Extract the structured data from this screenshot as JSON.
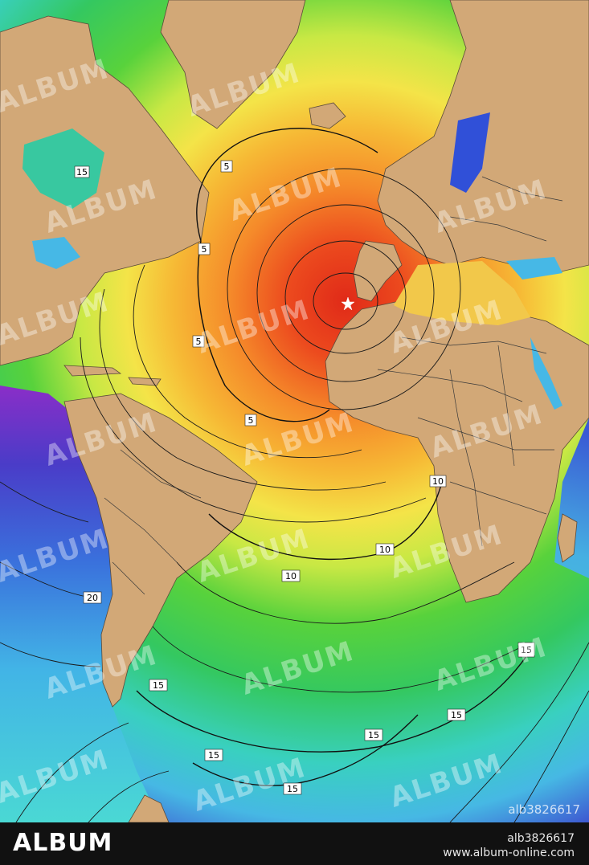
{
  "map": {
    "contour_labels": [
      {
        "text": "5"
      },
      {
        "text": "5"
      },
      {
        "text": "5"
      },
      {
        "text": "5"
      },
      {
        "text": "10"
      },
      {
        "text": "10"
      },
      {
        "text": "10"
      },
      {
        "text": "15"
      },
      {
        "text": "15"
      },
      {
        "text": "15"
      },
      {
        "text": "15"
      },
      {
        "text": "15"
      },
      {
        "text": "15"
      },
      {
        "text": "15"
      },
      {
        "text": "20"
      }
    ],
    "watermark": "ALBUM",
    "image_id": "alb3826617",
    "epicenter": "star-icon"
  },
  "footer": {
    "logo": "ALBUM",
    "id": "alb3826617",
    "url": "www.album-online.com"
  },
  "colors": {
    "land": "#d2a877",
    "hot": "#e8301c",
    "warm": "#f7a230",
    "mid": "#f4e84a",
    "cool": "#3fc63c",
    "cold": "#3fd0d8",
    "deep": "#4040c8",
    "farthest": "#8c2cc8"
  }
}
